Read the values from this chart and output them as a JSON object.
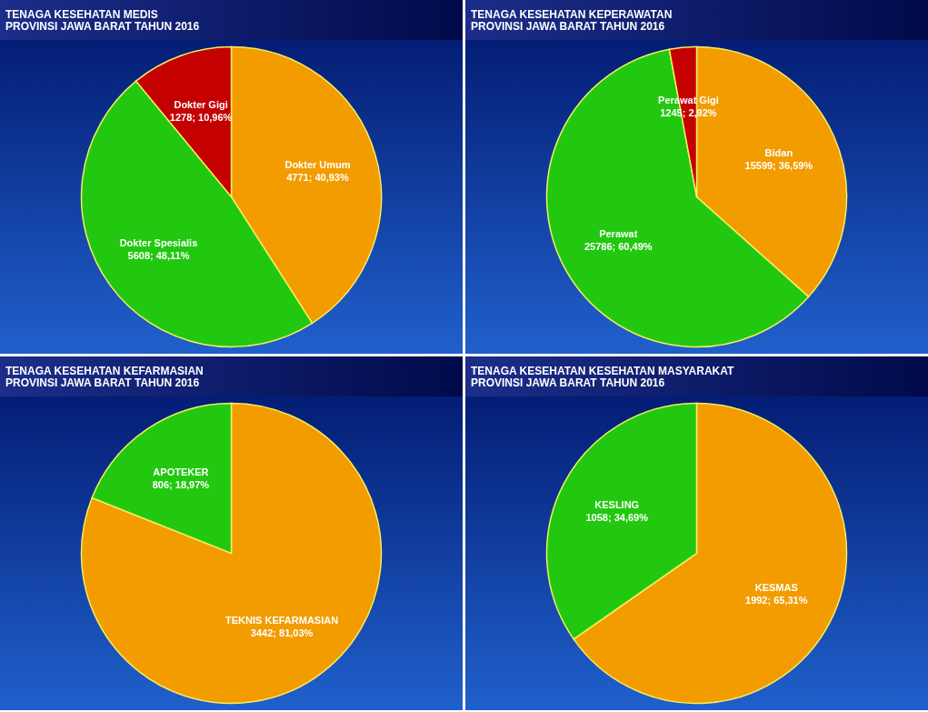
{
  "chart_data": [
    {
      "type": "pie",
      "title": "TENAGA KESEHATAN MEDIS",
      "subtitle": "PROVINSI JAWA BARAT TAHUN 2016",
      "categories": [
        "Dokter Umum",
        "Dokter Spesialis",
        "Dokter Gigi"
      ],
      "values": [
        4771,
        5608,
        1278
      ],
      "value_labels": [
        "4771; 40,93%",
        "5608; 48,11%",
        "1278; 10,96%"
      ],
      "colors": [
        "#f29c00",
        "#22c810",
        "#c40000"
      ]
    },
    {
      "type": "pie",
      "title": "TENAGA KESEHATAN KEPERAWATAN",
      "subtitle": "PROVINSI JAWA BARAT TAHUN 2016",
      "categories": [
        "Bidan",
        "Perawat",
        "Perawat Gigi"
      ],
      "values": [
        15599,
        25786,
        1245
      ],
      "value_labels": [
        "15599; 36,59%",
        "25786; 60,49%",
        "1245; 2,92%"
      ],
      "colors": [
        "#f29c00",
        "#22c810",
        "#c40000"
      ]
    },
    {
      "type": "pie",
      "title": "TENAGA KESEHATAN KEFARMASIAN",
      "subtitle": "PROVINSI JAWA BARAT TAHUN 2016",
      "categories": [
        "TEKNIS KEFARMASIAN",
        "APOTEKER"
      ],
      "values": [
        3442,
        806
      ],
      "value_labels": [
        "3442; 81,03%",
        "806; 18,97%"
      ],
      "colors": [
        "#f29c00",
        "#22c810"
      ]
    },
    {
      "type": "pie",
      "title": "TENAGA KESEHATAN KESEHATAN MASYARAKAT",
      "subtitle": "PROVINSI JAWA BARAT TAHUN 2016",
      "categories": [
        "KESMAS",
        "KESLING"
      ],
      "values": [
        1992,
        1058
      ],
      "value_labels": [
        "1992; 65,31%",
        "1058; 34,69%"
      ],
      "colors": [
        "#f29c00",
        "#22c810"
      ]
    }
  ]
}
